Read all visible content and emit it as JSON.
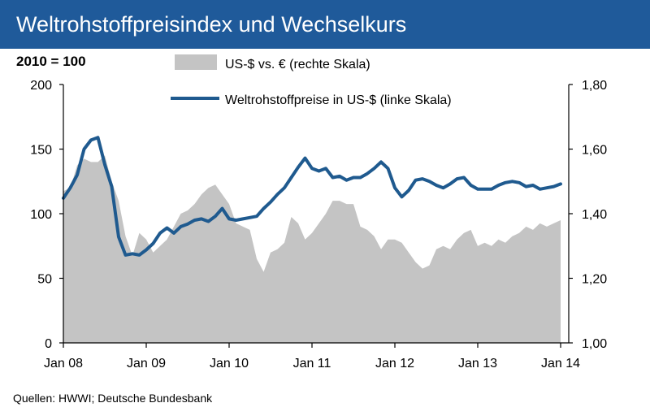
{
  "header": {
    "title": "Weltrohstoffpreisindex und Wechselkurs"
  },
  "unit_label": "2010 = 100",
  "source": "Quellen:  HWWI;  Deutsche  Bundesbank",
  "colors": {
    "title_bar": "#1f5a9a",
    "line": "#1f5a8f",
    "area": "#c4c4c4"
  },
  "chart_data": {
    "type": "line",
    "title": "Weltrohstoffpreisindex und Wechselkurs",
    "x_tick_labels": [
      "Jan 08",
      "Jan 09",
      "Jan 10",
      "Jan 11",
      "Jan 12",
      "Jan 13",
      "Jan 14"
    ],
    "left_axis": {
      "ticks": [
        "0",
        "50",
        "100",
        "150",
        "200"
      ],
      "ylim": [
        0,
        200
      ]
    },
    "right_axis": {
      "ticks": [
        "1,00",
        "1,20",
        "1,40",
        "1,60",
        "1,80"
      ],
      "ylim": [
        1.0,
        1.8
      ]
    },
    "grid": false,
    "legend_position": "top",
    "series": [
      {
        "name": "US-$ vs. € (rechte Skala)",
        "kind": "area",
        "axis": "right",
        "start": "2008-01",
        "frequency": "monthly",
        "values": [
          1.47,
          1.48,
          1.55,
          1.57,
          1.56,
          1.56,
          1.58,
          1.5,
          1.44,
          1.33,
          1.27,
          1.34,
          1.32,
          1.28,
          1.3,
          1.32,
          1.36,
          1.4,
          1.41,
          1.43,
          1.46,
          1.48,
          1.49,
          1.46,
          1.43,
          1.37,
          1.36,
          1.35,
          1.26,
          1.22,
          1.28,
          1.29,
          1.31,
          1.39,
          1.37,
          1.32,
          1.34,
          1.37,
          1.4,
          1.44,
          1.44,
          1.43,
          1.43,
          1.36,
          1.35,
          1.33,
          1.29,
          1.32,
          1.32,
          1.31,
          1.28,
          1.25,
          1.23,
          1.24,
          1.29,
          1.3,
          1.29,
          1.32,
          1.34,
          1.35,
          1.3,
          1.31,
          1.3,
          1.32,
          1.31,
          1.33,
          1.34,
          1.36,
          1.35,
          1.37,
          1.36,
          1.37,
          1.38
        ]
      },
      {
        "name": "Weltrohstoffpreise in US-$ (linke Skala)",
        "kind": "line",
        "axis": "left",
        "start": "2008-01",
        "frequency": "monthly",
        "values": [
          112,
          120,
          130,
          150,
          157,
          159,
          138,
          121,
          82,
          68,
          69,
          68,
          72,
          77,
          85,
          89,
          85,
          90,
          92,
          95,
          96,
          94,
          98,
          104,
          96,
          95,
          96,
          97,
          98,
          104,
          109,
          115,
          120,
          128,
          136,
          143,
          135,
          133,
          135,
          128,
          129,
          126,
          128,
          128,
          131,
          135,
          140,
          135,
          120,
          113,
          118,
          126,
          127,
          125,
          122,
          120,
          123,
          127,
          128,
          122,
          119,
          119,
          119,
          122,
          124,
          125,
          124,
          121,
          122,
          119,
          120,
          121,
          123
        ]
      }
    ]
  }
}
